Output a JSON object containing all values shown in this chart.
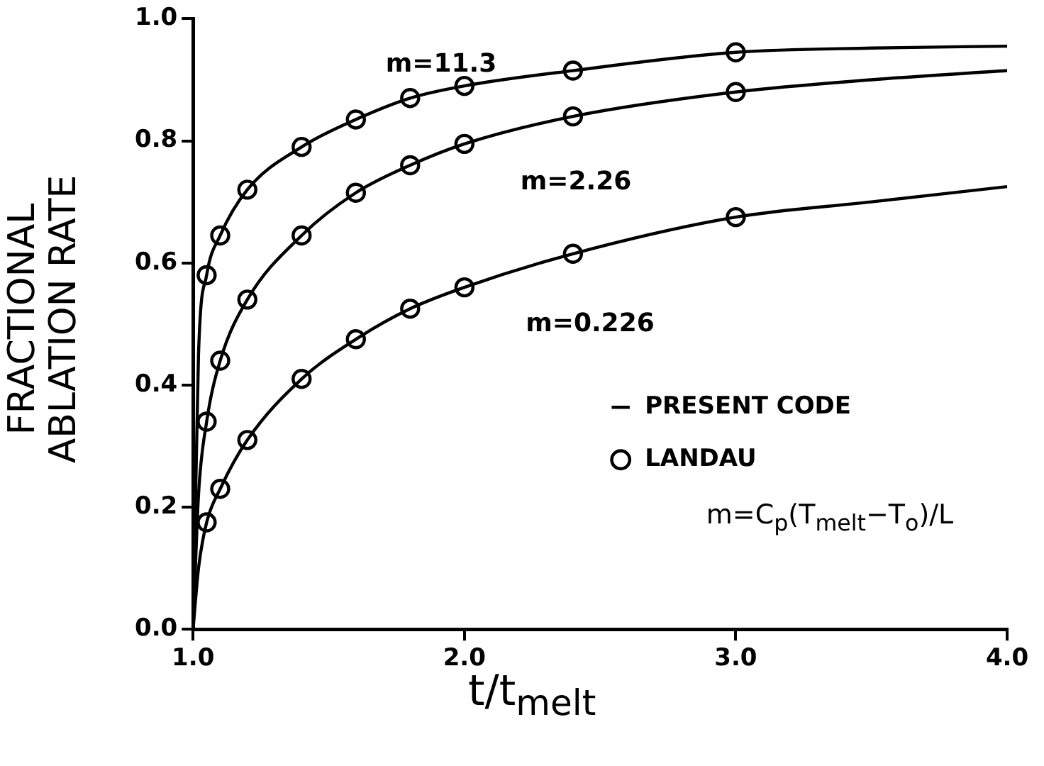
{
  "chart_data": {
    "type": "line",
    "xlabel": "t/t$_{melt}$",
    "ylabel": "FRACTIONAL ABLATION RATE",
    "xlim": [
      1.0,
      4.0
    ],
    "xticks": [
      {
        "value": 1,
        "label": "1.0"
      },
      {
        "value": 2,
        "label": "2.0"
      },
      {
        "value": 3,
        "label": "3.0"
      },
      {
        "value": 4,
        "label": "4.0"
      }
    ],
    "ylim": [
      0,
      1.0
    ],
    "yticks": [
      {
        "value": 0,
        "label": "0.0"
      },
      {
        "value": 0.2,
        "label": "0.2"
      },
      {
        "value": 0.4,
        "label": "0.4"
      },
      {
        "value": 0.6,
        "label": "0.6"
      },
      {
        "value": 0.8,
        "label": "0.8"
      },
      {
        "value": 1,
        "label": "1.0"
      }
    ],
    "grid": false,
    "legend": "bottom right",
    "line_style": "solid",
    "series": [
      {
        "name": "PRESENT CODE",
        "color": "#000000",
        "marker": "none",
        "x": [
          1.0,
          1.02,
          1.05,
          1.1,
          1.2,
          1.4,
          1.6,
          1.8,
          2.0,
          2.4,
          3.0,
          3.5,
          4.0
        ],
        "values": [
          0,
          0.45,
          0.58,
          0.645,
          0.72,
          0.79,
          0.835,
          0.87,
          0.89,
          0.915,
          0.945,
          0.952,
          0.955
        ]
      },
      {
        "color": "#000000",
        "marker": "none",
        "x": [
          1.0,
          1.02,
          1.05,
          1.1,
          1.2,
          1.4,
          1.6,
          1.8,
          2.0,
          2.4,
          3.0,
          3.5,
          4.0
        ],
        "values": [
          0,
          0.22,
          0.34,
          0.44,
          0.54,
          0.645,
          0.715,
          0.76,
          0.795,
          0.84,
          0.88,
          0.9,
          0.915
        ]
      },
      {
        "color": "#000000",
        "marker": "none",
        "x": [
          1.0,
          1.02,
          1.05,
          1.1,
          1.2,
          1.4,
          1.6,
          1.8,
          2.0,
          2.4,
          3.0,
          3.5,
          4.0
        ],
        "values": [
          0,
          0.1,
          0.175,
          0.23,
          0.31,
          0.41,
          0.475,
          0.525,
          0.56,
          0.615,
          0.675,
          0.7,
          0.725
        ]
      },
      {
        "name": "LANDAU",
        "type": "scatter",
        "color": "#000000",
        "marker": "circle",
        "x": [
          1.05,
          1.1,
          1.2,
          1.4,
          1.6,
          1.8,
          2.0,
          2.4,
          3.0
        ],
        "values": [
          0.58,
          0.645,
          0.72,
          0.79,
          0.835,
          0.87,
          0.89,
          0.915,
          0.945
        ]
      },
      {
        "type": "scatter",
        "color": "#000000",
        "marker": "circle",
        "x": [
          1.05,
          1.1,
          1.2,
          1.4,
          1.6,
          1.8,
          2.0,
          2.4,
          3.0
        ],
        "values": [
          0.34,
          0.44,
          0.54,
          0.645,
          0.715,
          0.76,
          0.795,
          0.84,
          0.88
        ]
      },
      {
        "type": "scatter",
        "color": "#000000",
        "marker": "circle",
        "x": [
          1.05,
          1.1,
          1.2,
          1.4,
          1.6,
          1.8,
          2.0,
          2.4,
          3.0
        ],
        "values": [
          0.175,
          0.23,
          0.31,
          0.41,
          0.475,
          0.525,
          0.56,
          0.615,
          0.675
        ]
      }
    ],
    "annotations": [
      "m=11.3",
      "m=2.26",
      "m=0.226",
      "m=C$_{p}$(T$_{melt}$−T$_{o}$)/L"
    ]
  }
}
